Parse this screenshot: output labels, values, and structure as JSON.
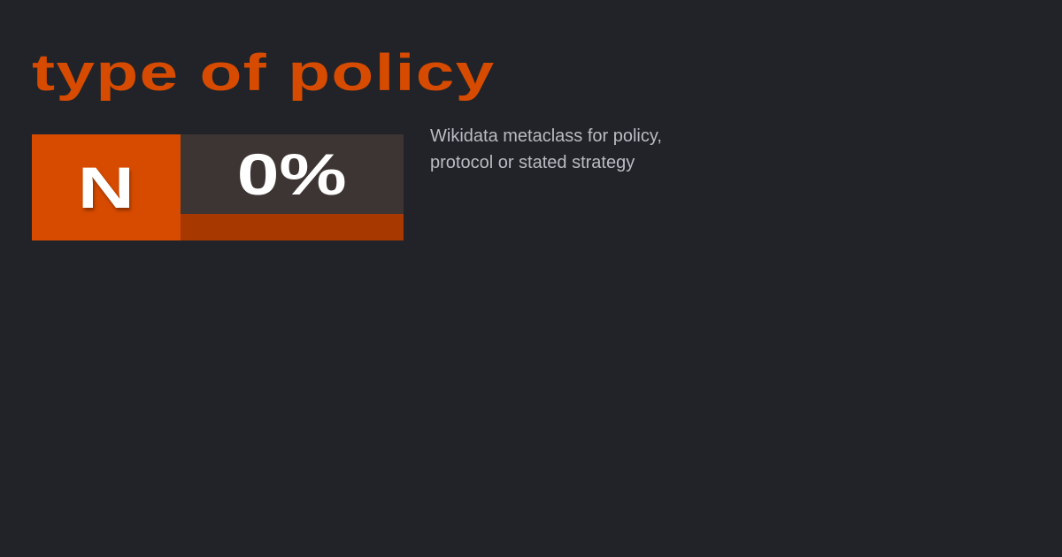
{
  "title": "type of policy",
  "badge": {
    "grade": "N",
    "score": "0%"
  },
  "description": "Wikidata metaclass for policy, protocol or stated strategy",
  "colors": {
    "accent": "#d64b00",
    "background": "#212328",
    "score_panel": "#3d3533",
    "score_strip": "#a73800"
  }
}
